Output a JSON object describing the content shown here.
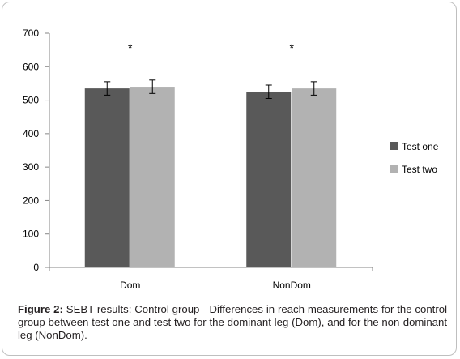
{
  "chart_data": {
    "type": "bar",
    "categories": [
      "Dom",
      "NonDom"
    ],
    "series": [
      {
        "name": "Test one",
        "values": [
          535,
          525
        ],
        "errors": [
          20,
          20
        ],
        "color": "#595959"
      },
      {
        "name": "Test two",
        "values": [
          540,
          535
        ],
        "errors": [
          20,
          20
        ],
        "color": "#b2b2b2"
      }
    ],
    "ylim": [
      0,
      700
    ],
    "yticks": [
      0,
      100,
      200,
      300,
      400,
      500,
      600,
      700
    ],
    "grid": false,
    "legend": "right",
    "annotations": [
      {
        "category": "Dom",
        "text": "*"
      },
      {
        "category": "NonDom",
        "text": "*"
      }
    ]
  },
  "caption": {
    "label": "Figure 2:",
    "text": " SEBT results: Control group - Differences in reach measurements for the control group between test one and test two for the dominant leg (Dom), and for the non-dominant leg (NonDom)."
  }
}
